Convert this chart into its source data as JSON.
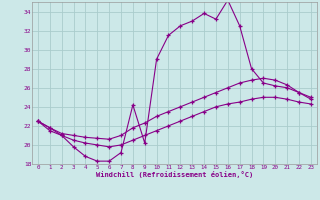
{
  "xlabel": "Windchill (Refroidissement éolien,°C)",
  "x": [
    0,
    1,
    2,
    3,
    4,
    5,
    6,
    7,
    8,
    9,
    10,
    11,
    12,
    13,
    14,
    15,
    16,
    17,
    18,
    19,
    20,
    21,
    22,
    23
  ],
  "line1": [
    22.5,
    21.8,
    21.0,
    19.8,
    18.8,
    18.3,
    18.3,
    19.2,
    24.2,
    20.2,
    29.0,
    31.5,
    32.5,
    33.0,
    33.8,
    33.2,
    35.2,
    32.5,
    28.0,
    26.5,
    26.2,
    26.0,
    25.5,
    24.8
  ],
  "line2": [
    22.5,
    21.8,
    21.2,
    21.0,
    20.8,
    20.7,
    20.6,
    21.0,
    21.8,
    22.3,
    23.0,
    23.5,
    24.0,
    24.5,
    25.0,
    25.5,
    26.0,
    26.5,
    26.8,
    27.0,
    26.8,
    26.3,
    25.5,
    25.0
  ],
  "line3": [
    22.5,
    21.5,
    21.0,
    20.5,
    20.2,
    20.0,
    19.8,
    20.0,
    20.5,
    21.0,
    21.5,
    22.0,
    22.5,
    23.0,
    23.5,
    24.0,
    24.3,
    24.5,
    24.8,
    25.0,
    25.0,
    24.8,
    24.5,
    24.3
  ],
  "ylim": [
    18,
    35
  ],
  "xlim": [
    -0.5,
    23.5
  ],
  "yticks": [
    18,
    20,
    22,
    24,
    26,
    28,
    30,
    32,
    34
  ],
  "xticks": [
    0,
    1,
    2,
    3,
    4,
    5,
    6,
    7,
    8,
    9,
    10,
    11,
    12,
    13,
    14,
    15,
    16,
    17,
    18,
    19,
    20,
    21,
    22,
    23
  ],
  "line_color": "#880088",
  "bg_color": "#cce8e8",
  "grid_color": "#aacccc",
  "marker": "+"
}
